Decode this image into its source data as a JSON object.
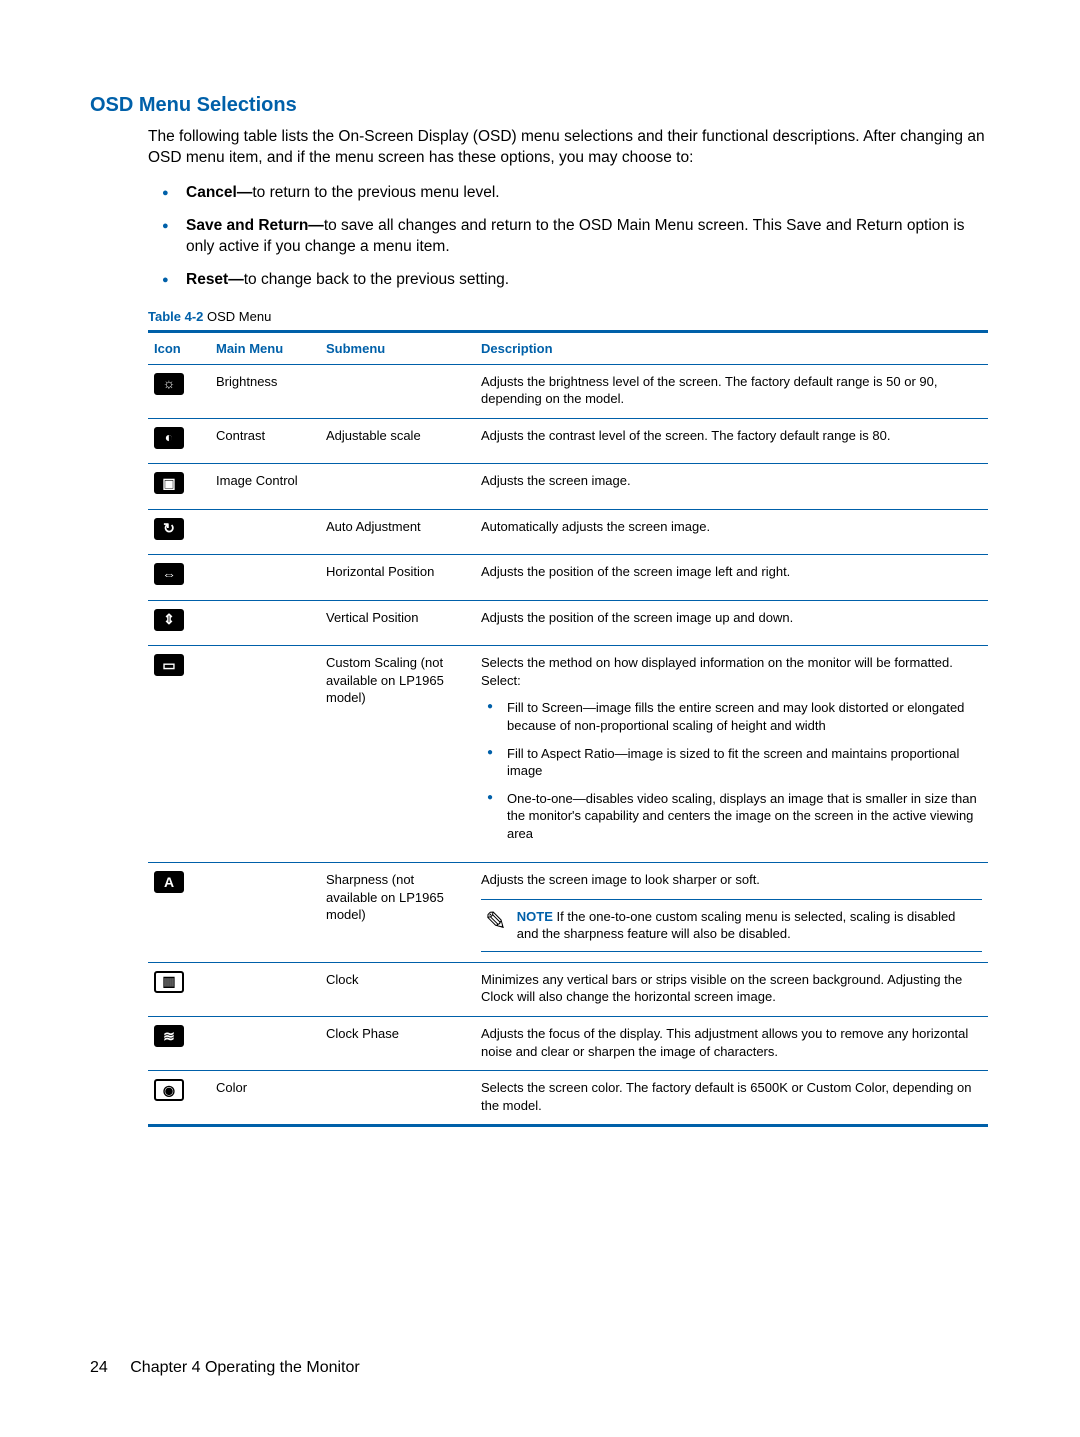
{
  "colors": {
    "accent": "#0060a9",
    "text": "#000000",
    "background": "#ffffff"
  },
  "section": {
    "title": "OSD Menu Selections",
    "intro": "The following table lists the On-Screen Display (OSD) menu selections and their functional descriptions. After changing an OSD menu item, and if the menu screen has these options, you may choose to:"
  },
  "options": [
    {
      "term": "Cancel—",
      "text": "to return to the previous menu level."
    },
    {
      "term": "Save and Return—",
      "text": "to save all changes and return to the OSD Main Menu screen. This Save and Return option is only active if you change a menu item."
    },
    {
      "term": "Reset—",
      "text": "to change back to the previous setting."
    }
  ],
  "table": {
    "caption_label": "Table 4-2",
    "caption_text": "  OSD Menu",
    "headers": {
      "icon": "Icon",
      "main": "Main Menu",
      "sub": "Submenu",
      "desc": "Description"
    },
    "rows": [
      {
        "icon_name": "brightness-icon",
        "icon_glyph": "☼",
        "main": "Brightness",
        "sub": "",
        "desc": "Adjusts the brightness level of the screen. The factory default range is 50 or 90, depending on the model."
      },
      {
        "icon_name": "contrast-icon",
        "icon_glyph": "◐",
        "main": "Contrast",
        "sub": "Adjustable scale",
        "desc": "Adjusts the contrast level of the screen. The factory default range is 80."
      },
      {
        "icon_name": "image-control-icon",
        "icon_glyph": "▣",
        "main": "Image Control",
        "sub": "",
        "desc": "Adjusts the screen image."
      },
      {
        "icon_name": "auto-adjust-icon",
        "icon_glyph": "↻",
        "main": "",
        "sub": "Auto Adjustment",
        "desc": "Automatically adjusts the screen image."
      },
      {
        "icon_name": "h-position-icon",
        "icon_glyph": "⇔",
        "main": "",
        "sub": "Horizontal Position",
        "desc": "Adjusts the position of the screen image left and right."
      },
      {
        "icon_name": "v-position-icon",
        "icon_glyph": "⇕",
        "main": "",
        "sub": "Vertical Position",
        "desc": "Adjusts the position of the screen image up and down."
      },
      {
        "icon_name": "custom-scaling-icon",
        "icon_glyph": "▭",
        "main": "",
        "sub": "Custom Scaling (not available on LP1965 model)",
        "desc_intro": "Selects the method on how displayed information on the monitor will be formatted. Select:",
        "sublist": [
          "Fill to Screen—image fills the entire screen and may look distorted or elongated because of non-proportional scaling of height and width",
          "Fill to Aspect Ratio—image is sized to fit the screen and maintains proportional image",
          "One-to-one—disables video scaling, displays an image that is smaller in size than the monitor's capability and centers the image on the screen in the active viewing area"
        ]
      },
      {
        "icon_name": "sharpness-icon",
        "icon_glyph": "A",
        "main": "",
        "sub": "Sharpness (not available on LP1965 model)",
        "desc": "Adjusts the screen image to look sharper or soft.",
        "note": {
          "label": "NOTE",
          "text": "If the one-to-one custom scaling menu is selected, scaling is disabled and the sharpness feature will also be disabled."
        }
      },
      {
        "icon_name": "clock-icon",
        "icon_glyph": "▥",
        "icon_outline": true,
        "main": "",
        "sub": "Clock",
        "desc": "Minimizes any vertical bars or strips visible on the screen background. Adjusting the Clock will also change the horizontal screen image."
      },
      {
        "icon_name": "clock-phase-icon",
        "icon_glyph": "≋",
        "main": "",
        "sub": "Clock Phase",
        "desc": "Adjusts the focus of the display. This adjustment allows you to remove any horizontal noise and clear or sharpen the image of characters."
      },
      {
        "icon_name": "color-icon",
        "icon_glyph": "◉",
        "icon_outline": true,
        "main": "Color",
        "sub": "",
        "desc": "Selects the screen color. The factory default is 6500K or Custom Color, depending on the model."
      }
    ]
  },
  "footer": {
    "page": "24",
    "chapter": "Chapter 4   Operating the Monitor"
  }
}
